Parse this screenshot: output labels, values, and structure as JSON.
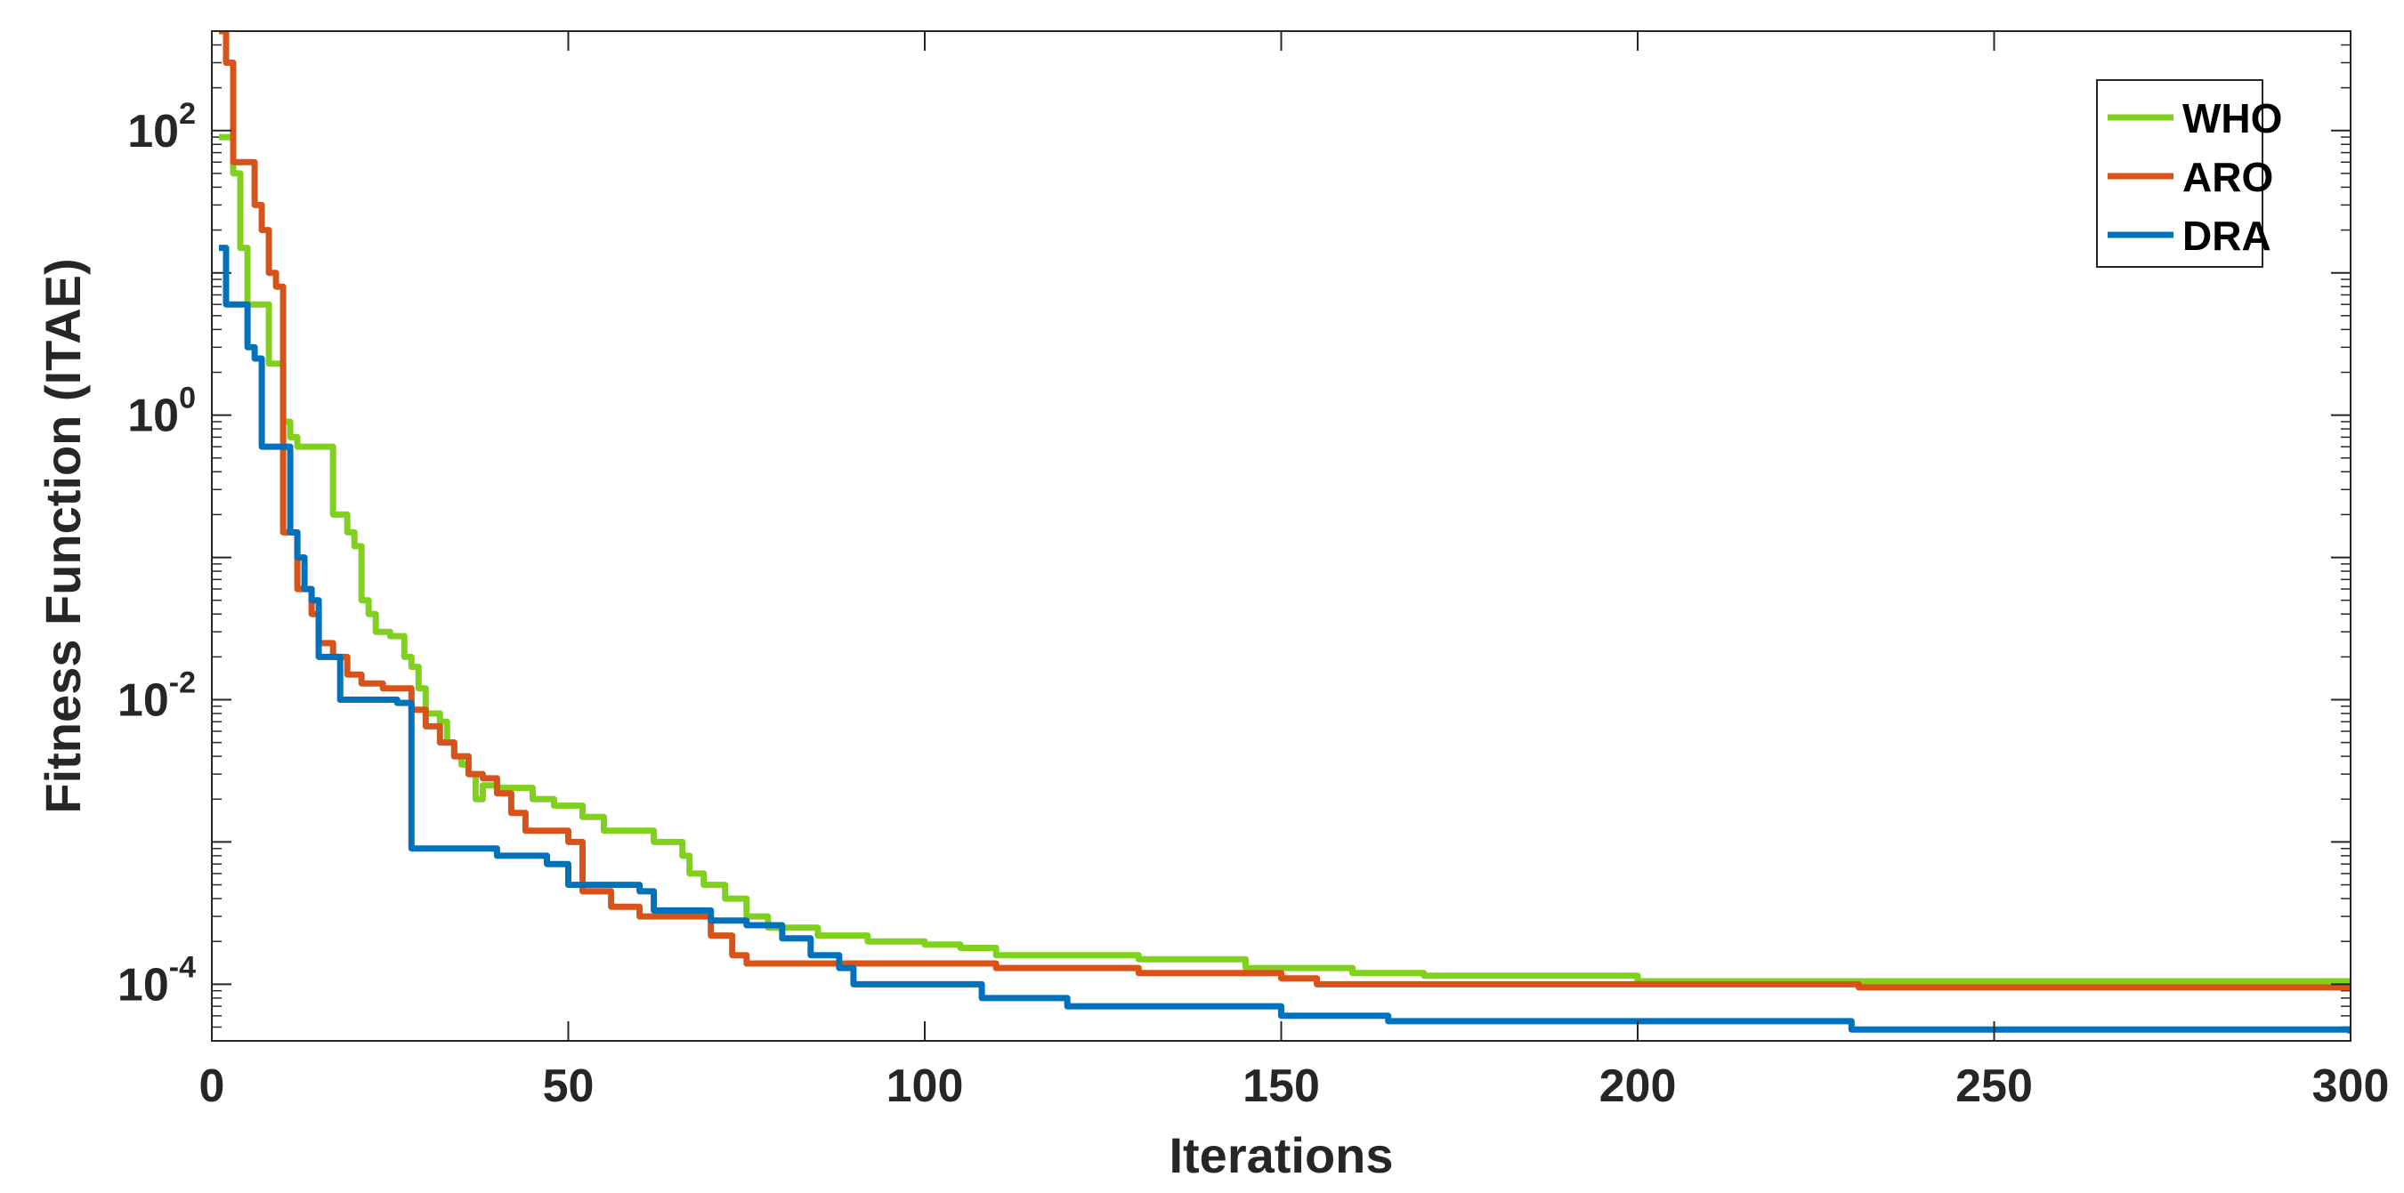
{
  "chart_data": {
    "type": "line",
    "xlabel": "Iterations",
    "ylabel": "Fitness Function (ITAE)",
    "xlim": [
      0,
      300
    ],
    "ylim": [
      4e-05,
      500
    ],
    "yscale": "log",
    "xticks": [
      {
        "value": 0,
        "label": "0"
      },
      {
        "value": 50,
        "label": "50"
      },
      {
        "value": 100,
        "label": "100"
      },
      {
        "value": 150,
        "label": "150"
      },
      {
        "value": 200,
        "label": "200"
      },
      {
        "value": 250,
        "label": "250"
      },
      {
        "value": 300,
        "label": "300"
      }
    ],
    "yticks": [
      {
        "value": 100,
        "base": "10",
        "exp": "2"
      },
      {
        "value": 1,
        "base": "10",
        "exp": "0"
      },
      {
        "value": 0.01,
        "base": "10",
        "exp": "-2"
      },
      {
        "value": 0.0001,
        "base": "10",
        "exp": "-4"
      }
    ],
    "grid": false,
    "legend_position": "top-right",
    "series": [
      {
        "name": "WHO",
        "color": "#7fd11b",
        "points": [
          [
            1,
            90
          ],
          [
            2,
            90
          ],
          [
            3,
            50
          ],
          [
            4,
            15
          ],
          [
            5,
            6
          ],
          [
            7,
            6
          ],
          [
            8,
            2.3
          ],
          [
            9,
            2.3
          ],
          [
            10,
            0.9
          ],
          [
            11,
            0.7
          ],
          [
            12,
            0.6
          ],
          [
            16,
            0.6
          ],
          [
            17,
            0.2
          ],
          [
            19,
            0.15
          ],
          [
            20,
            0.12
          ],
          [
            21,
            0.05
          ],
          [
            22,
            0.04
          ],
          [
            23,
            0.03
          ],
          [
            25,
            0.028
          ],
          [
            27,
            0.02
          ],
          [
            28,
            0.017
          ],
          [
            29,
            0.012
          ],
          [
            30,
            0.008
          ],
          [
            32,
            0.007
          ],
          [
            33,
            0.005
          ],
          [
            34,
            0.004
          ],
          [
            35,
            0.0035
          ],
          [
            36,
            0.003
          ],
          [
            37,
            0.002
          ],
          [
            38,
            0.0025
          ],
          [
            40,
            0.0024
          ],
          [
            45,
            0.002
          ],
          [
            48,
            0.0018
          ],
          [
            52,
            0.0015
          ],
          [
            55,
            0.0012
          ],
          [
            60,
            0.0012
          ],
          [
            62,
            0.001
          ],
          [
            66,
            0.0008
          ],
          [
            67,
            0.0006
          ],
          [
            69,
            0.0005
          ],
          [
            72,
            0.0004
          ],
          [
            75,
            0.0003
          ],
          [
            78,
            0.00025
          ],
          [
            80,
            0.00025
          ],
          [
            85,
            0.00022
          ],
          [
            90,
            0.00022
          ],
          [
            92,
            0.0002
          ],
          [
            100,
            0.00019
          ],
          [
            105,
            0.00018
          ],
          [
            110,
            0.00016
          ],
          [
            130,
            0.00015
          ],
          [
            145,
            0.00013
          ],
          [
            160,
            0.00012
          ],
          [
            170,
            0.000115
          ],
          [
            200,
            0.000105
          ],
          [
            300,
            0.000105
          ]
        ]
      },
      {
        "name": "ARO",
        "color": "#d95319",
        "points": [
          [
            1,
            500
          ],
          [
            2,
            300
          ],
          [
            3,
            60
          ],
          [
            5,
            60
          ],
          [
            6,
            30
          ],
          [
            7,
            20
          ],
          [
            8,
            10
          ],
          [
            9,
            8
          ],
          [
            10,
            0.15
          ],
          [
            11,
            0.15
          ],
          [
            12,
            0.06
          ],
          [
            14,
            0.04
          ],
          [
            15,
            0.025
          ],
          [
            17,
            0.02
          ],
          [
            19,
            0.015
          ],
          [
            21,
            0.013
          ],
          [
            24,
            0.012
          ],
          [
            26,
            0.012
          ],
          [
            28,
            0.0085
          ],
          [
            30,
            0.0065
          ],
          [
            32,
            0.005
          ],
          [
            34,
            0.004
          ],
          [
            36,
            0.003
          ],
          [
            38,
            0.0028
          ],
          [
            40,
            0.0022
          ],
          [
            42,
            0.0016
          ],
          [
            44,
            0.0012
          ],
          [
            46,
            0.0012
          ],
          [
            50,
            0.001
          ],
          [
            51,
            0.001
          ],
          [
            52,
            0.00045
          ],
          [
            56,
            0.00035
          ],
          [
            60,
            0.0003
          ],
          [
            65,
            0.0003
          ],
          [
            70,
            0.00022
          ],
          [
            73,
            0.00016
          ],
          [
            75,
            0.00014
          ],
          [
            90,
            0.00014
          ],
          [
            110,
            0.00013
          ],
          [
            130,
            0.00012
          ],
          [
            150,
            0.00011
          ],
          [
            155,
            0.0001
          ],
          [
            230,
            0.0001
          ],
          [
            231,
            9.5e-05
          ],
          [
            300,
            9.2e-05
          ]
        ]
      },
      {
        "name": "DRA",
        "color": "#0072bd",
        "points": [
          [
            1,
            15
          ],
          [
            2,
            6
          ],
          [
            4,
            6
          ],
          [
            5,
            3
          ],
          [
            6,
            2.5
          ],
          [
            7,
            0.6
          ],
          [
            10,
            0.6
          ],
          [
            11,
            0.15
          ],
          [
            12,
            0.1
          ],
          [
            13,
            0.06
          ],
          [
            14,
            0.05
          ],
          [
            15,
            0.02
          ],
          [
            17,
            0.02
          ],
          [
            18,
            0.01
          ],
          [
            24,
            0.01
          ],
          [
            26,
            0.0095
          ],
          [
            27,
            0.0095
          ],
          [
            28,
            0.0009
          ],
          [
            40,
            0.0008
          ],
          [
            44,
            0.0008
          ],
          [
            47,
            0.0007
          ],
          [
            50,
            0.0005
          ],
          [
            60,
            0.00045
          ],
          [
            62,
            0.00033
          ],
          [
            70,
            0.00028
          ],
          [
            75,
            0.00026
          ],
          [
            80,
            0.00021
          ],
          [
            84,
            0.00016
          ],
          [
            88,
            0.00013
          ],
          [
            90,
            0.0001
          ],
          [
            100,
            0.0001
          ],
          [
            108,
            8e-05
          ],
          [
            120,
            7e-05
          ],
          [
            150,
            6e-05
          ],
          [
            165,
            5.5e-05
          ],
          [
            230,
            4.8e-05
          ],
          [
            300,
            4.5e-05
          ]
        ]
      }
    ]
  }
}
